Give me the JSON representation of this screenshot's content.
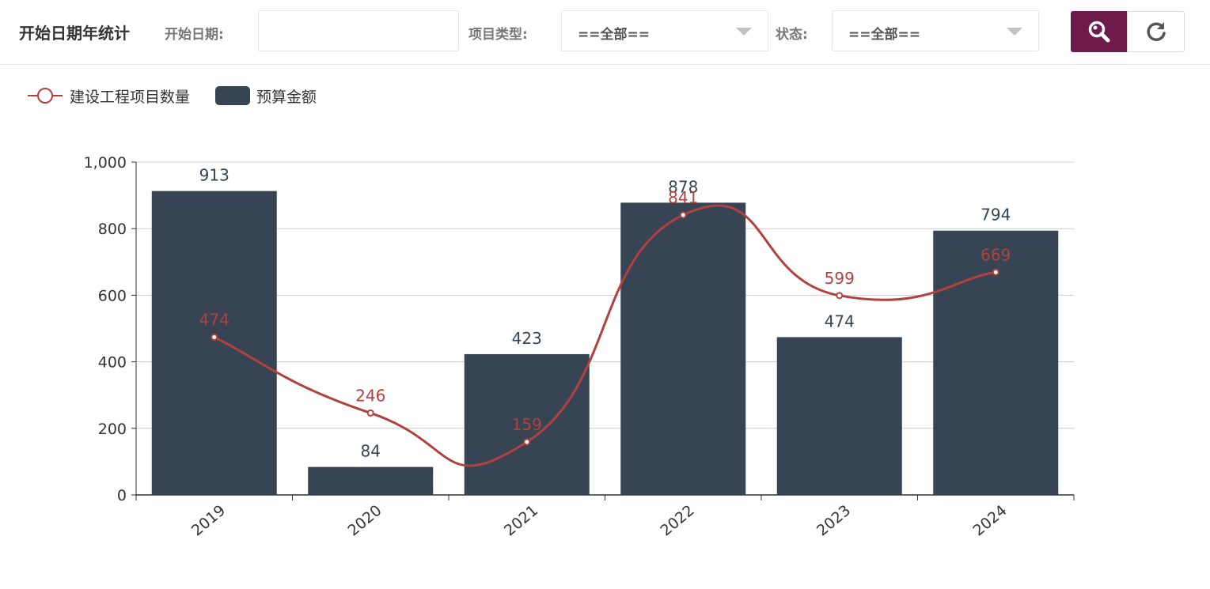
{
  "toolbar": {
    "title": "开始日期年统计",
    "start_date_label": "开始日期:",
    "start_date_value": "",
    "project_type_label": "项目类型:",
    "project_type_value": "==全部==",
    "status_label": "状态:",
    "status_value": "==全部==",
    "search_icon": "search-icon",
    "reset_icon": "refresh-icon"
  },
  "colors": {
    "bar": "#364453",
    "line": "#b0413e",
    "search_button": "#6e1a4b"
  },
  "chart_data": {
    "type": "bar",
    "categories": [
      "2019",
      "2020",
      "2021",
      "2022",
      "2023",
      "2024"
    ],
    "series": [
      {
        "name": "建设工程项目数量",
        "kind": "line",
        "smooth": true,
        "values": [
          474,
          246,
          159,
          841,
          599,
          669
        ]
      },
      {
        "name": "预算金额",
        "kind": "bar",
        "values": [
          913,
          84,
          423,
          878,
          474,
          794
        ]
      }
    ],
    "legend": [
      "建设工程项目数量",
      "预算金额"
    ],
    "legend_position": "top-left",
    "ylim": [
      0,
      1000
    ],
    "yticks": [
      "0",
      "200",
      "400",
      "600",
      "800",
      "1,000"
    ],
    "grid": true,
    "x_tick_rotation": -40
  }
}
